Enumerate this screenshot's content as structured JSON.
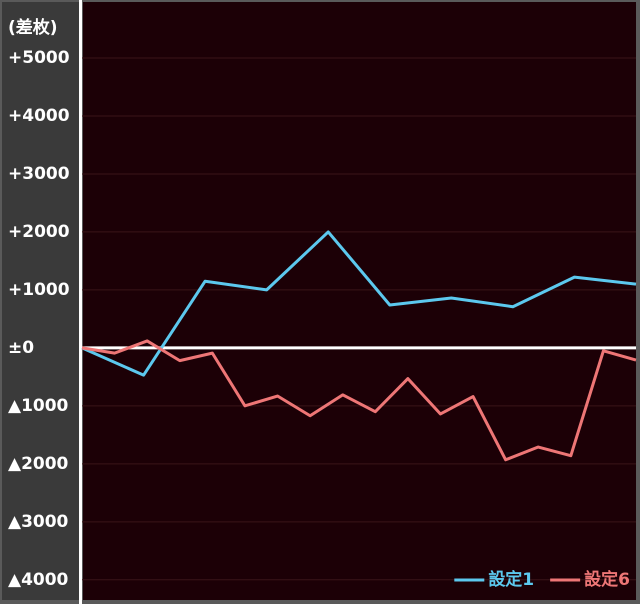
{
  "chart_data": {
    "type": "line",
    "y_label": "(差枚)",
    "ylim": [
      -4400,
      6000
    ],
    "yticks": [
      {
        "value": 5000,
        "label": "+5000"
      },
      {
        "value": 4000,
        "label": "+4000"
      },
      {
        "value": 3000,
        "label": "+3000"
      },
      {
        "value": 2000,
        "label": "+2000"
      },
      {
        "value": 1000,
        "label": "+1000"
      },
      {
        "value": 0,
        "label": "±0"
      },
      {
        "value": -1000,
        "label": "▲1000"
      },
      {
        "value": -2000,
        "label": "▲2000"
      },
      {
        "value": -3000,
        "label": "▲3000"
      },
      {
        "value": -4000,
        "label": "▲4000"
      }
    ],
    "grid": true,
    "legend": "bottom-right",
    "series": [
      {
        "name": "設定1",
        "color": "#5cc8ee",
        "values": [
          0,
          -470,
          1150,
          1000,
          2000,
          740,
          860,
          710,
          1220,
          1100
        ]
      },
      {
        "name": "設定6",
        "color": "#ee7676",
        "values": [
          0,
          -90,
          120,
          -220,
          -90,
          -1000,
          -830,
          -1170,
          -810,
          -1100,
          -530,
          -1140,
          -840,
          -1930,
          -1710,
          -1860,
          -50,
          -210
        ]
      }
    ]
  }
}
